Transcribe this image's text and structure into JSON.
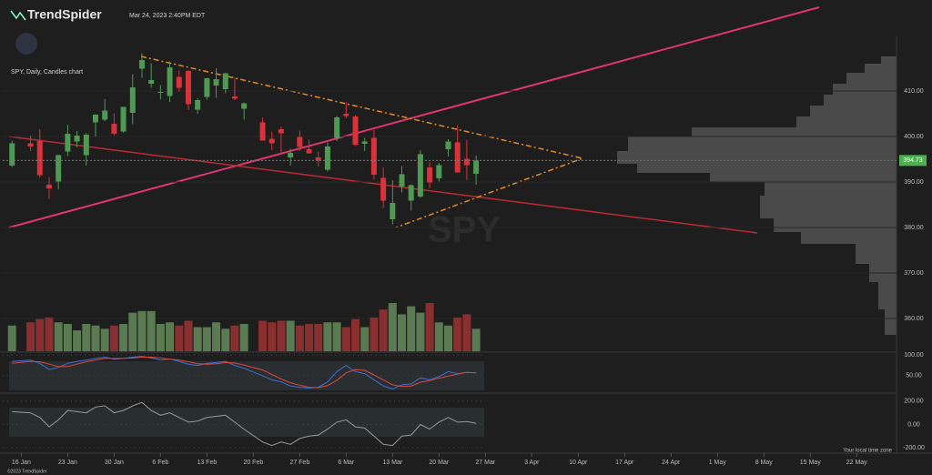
{
  "header": {
    "brand": "TrendSpider",
    "timestamp": "Mar 24, 2023 2:40PM EDT",
    "copyright": "©2023 TrendSpider",
    "timezone_note": "Your local time zone"
  },
  "chart_data": {
    "type": "candlestick",
    "title": "SPY, Daily, Candles chart",
    "watermark": "SPY",
    "x": [
      "2023-01-13",
      "2023-01-17",
      "2023-01-18",
      "2023-01-19",
      "2023-01-20",
      "2023-01-23",
      "2023-01-24",
      "2023-01-25",
      "2023-01-26",
      "2023-01-27",
      "2023-01-30",
      "2023-01-31",
      "2023-02-01",
      "2023-02-02",
      "2023-02-03",
      "2023-02-06",
      "2023-02-07",
      "2023-02-08",
      "2023-02-09",
      "2023-02-10",
      "2023-02-13",
      "2023-02-14",
      "2023-02-15",
      "2023-02-16",
      "2023-02-17",
      "2023-02-21",
      "2023-02-22",
      "2023-02-23",
      "2023-02-24",
      "2023-02-27",
      "2023-02-28",
      "2023-03-01",
      "2023-03-02",
      "2023-03-03",
      "2023-03-06",
      "2023-03-07",
      "2023-03-08",
      "2023-03-09",
      "2023-03-10",
      "2023-03-13",
      "2023-03-14",
      "2023-03-15",
      "2023-03-16",
      "2023-03-17",
      "2023-03-20",
      "2023-03-21",
      "2023-03-22",
      "2023-03-23",
      "2023-03-24"
    ],
    "open": [
      393.6,
      398.5,
      399.0,
      389.4,
      390.1,
      396.7,
      398.9,
      395.9,
      403.1,
      403.7,
      402.8,
      401.1,
      405.2,
      414.9,
      411.6,
      409.8,
      408.9,
      413.1,
      414.4,
      405.9,
      408.7,
      411.2,
      410.4,
      408.8,
      406.1,
      403.1,
      399.5,
      401.6,
      395.4,
      399.9,
      397.2,
      395.4,
      392.7,
      399.7,
      405.0,
      404.4,
      398.4,
      399.7,
      390.9,
      381.8,
      389.0,
      385.9,
      386.8,
      393.2,
      390.8,
      397.2,
      398.7,
      395.1,
      391.8
    ],
    "high": [
      399.1,
      400.2,
      401.6,
      391.1,
      396.0,
      402.6,
      401.2,
      400.7,
      404.9,
      408.2,
      405.1,
      406.5,
      413.7,
      418.3,
      416.1,
      411.3,
      416.5,
      414.5,
      414.6,
      408.4,
      412.9,
      415.0,
      414.0,
      412.9,
      407.5,
      404.2,
      401.1,
      402.2,
      397.3,
      401.3,
      399.3,
      396.7,
      398.7,
      404.5,
      407.5,
      404.7,
      399.7,
      401.5,
      393.2,
      390.4,
      393.5,
      389.5,
      397.0,
      394.4,
      394.2,
      399.4,
      402.5,
      399.3,
      395.8
    ],
    "low": [
      393.3,
      396.8,
      391.0,
      386.3,
      388.4,
      395.7,
      397.6,
      393.6,
      400.0,
      403.4,
      400.3,
      400.8,
      402.7,
      412.9,
      410.7,
      408.1,
      407.6,
      409.9,
      405.8,
      405.0,
      408.1,
      408.5,
      409.5,
      408.0,
      403.7,
      399.1,
      397.0,
      396.3,
      393.6,
      396.8,
      396.2,
      393.4,
      392.3,
      399.0,
      404.0,
      397.9,
      396.8,
      390.5,
      384.3,
      380.7,
      387.7,
      383.7,
      386.5,
      388.6,
      390.1,
      395.6,
      392.0,
      390.4,
      389.4
    ],
    "close": [
      398.5,
      397.8,
      391.5,
      388.6,
      395.9,
      400.6,
      400.2,
      400.4,
      404.8,
      405.7,
      400.6,
      406.5,
      410.8,
      416.8,
      412.4,
      409.8,
      415.2,
      410.7,
      407.1,
      408.0,
      412.8,
      412.6,
      413.9,
      408.3,
      407.3,
      399.1,
      398.5,
      400.7,
      396.4,
      397.7,
      396.3,
      394.7,
      397.8,
      404.2,
      404.5,
      398.2,
      398.9,
      391.6,
      385.9,
      385.4,
      391.7,
      389.3,
      396.1,
      389.9,
      393.7,
      398.9,
      392.1,
      393.7,
      394.73
    ],
    "volume": [
      80,
      90,
      100,
      105,
      90,
      85,
      65,
      85,
      80,
      70,
      80,
      85,
      120,
      125,
      125,
      85,
      90,
      80,
      95,
      75,
      75,
      90,
      70,
      80,
      85,
      95,
      90,
      95,
      95,
      80,
      85,
      85,
      90,
      90,
      75,
      100,
      75,
      105,
      130,
      150,
      115,
      140,
      120,
      150,
      90,
      80,
      105,
      115,
      70
    ],
    "vlim": [
      0,
      170
    ],
    "colors": {
      "up": "#4e9a52",
      "down": "#d8333a",
      "volume_up": "#5a7a52",
      "volume_down": "#8a2f2f"
    },
    "xlim": [
      "2023-01-12",
      "2023-05-26"
    ],
    "xticks": [
      {
        "value": "2023-01-16",
        "label": "16 Jan"
      },
      {
        "value": "2023-01-23",
        "label": "23 Jan"
      },
      {
        "value": "2023-01-30",
        "label": "30 Jan"
      },
      {
        "value": "2023-02-06",
        "label": "6 Feb"
      },
      {
        "value": "2023-02-13",
        "label": "13 Feb"
      },
      {
        "value": "2023-02-20",
        "label": "20 Feb"
      },
      {
        "value": "2023-02-27",
        "label": "27 Feb"
      },
      {
        "value": "2023-03-06",
        "label": "6 Mar"
      },
      {
        "value": "2023-03-13",
        "label": "13 Mar"
      },
      {
        "value": "2023-03-20",
        "label": "20 Mar"
      },
      {
        "value": "2023-03-27",
        "label": "27 Mar"
      },
      {
        "value": "2023-04-03",
        "label": "3 Apr"
      },
      {
        "value": "2023-04-10",
        "label": "10 Apr"
      },
      {
        "value": "2023-04-17",
        "label": "17 Apr"
      },
      {
        "value": "2023-04-24",
        "label": "24 Apr"
      },
      {
        "value": "2023-05-01",
        "label": "1 May"
      },
      {
        "value": "2023-05-08",
        "label": "8 May"
      },
      {
        "value": "2023-05-15",
        "label": "15 May"
      },
      {
        "value": "2023-05-22",
        "label": "22 May"
      }
    ],
    "ylim": [
      355,
      422
    ],
    "yticks": [
      {
        "value": 410,
        "label": "410.00"
      },
      {
        "value": 400,
        "label": "400.00"
      },
      {
        "value": 390,
        "label": "390.00"
      },
      {
        "value": 380,
        "label": "380.00"
      },
      {
        "value": 370,
        "label": "370.00"
      },
      {
        "value": 360,
        "label": "360.00"
      }
    ],
    "last_price": 394.73,
    "last_price_color": "#4caf50",
    "panels": [
      {
        "ylim": [
          10,
          105
        ],
        "yticks": [
          {
            "value": 100,
            "label": "100.00"
          },
          {
            "value": 50,
            "label": "50.00"
          }
        ],
        "series": [
          {
            "color": "#3f6fd8",
            "values": [
              85,
              88,
              80,
              65,
              70,
              80,
              85,
              88,
              92,
              95,
              90,
              92,
              95,
              97,
              93,
              88,
              90,
              85,
              78,
              75,
              80,
              82,
              85,
              75,
              68,
              50,
              40,
              35,
              25,
              22,
              20,
              22,
              35,
              60,
              75,
              60,
              55,
              40,
              25,
              18,
              28,
              30,
              45,
              40,
              48,
              60,
              55,
              58,
              57
            ]
          },
          {
            "color": "#d84a3f",
            "values": [
              80,
              85,
              84,
              78,
              72,
              72,
              78,
              84,
              88,
              92,
              92,
              92,
              93,
              95,
              95,
              93,
              90,
              88,
              84,
              79,
              78,
              79,
              82,
              81,
              76,
              64,
              53,
              42,
              33,
              27,
              22,
              21,
              26,
              39,
              57,
              65,
              63,
              52,
              40,
              28,
              24,
              25,
              34,
              38,
              44,
              49,
              54,
              58,
              57
            ]
          }
        ]
      },
      {
        "ylim": [
          -230,
          238
        ],
        "yticks": [
          {
            "value": 200,
            "label": "200.00"
          },
          {
            "value": 0,
            "label": "0.00"
          },
          {
            "value": -200,
            "label": "-200.00"
          }
        ],
        "series": [
          {
            "color": "#9a9a9a",
            "values": [
              110,
              100,
              60,
              -20,
              40,
              120,
              110,
              100,
              150,
              160,
              100,
              120,
              160,
              190,
              120,
              80,
              100,
              60,
              20,
              30,
              60,
              70,
              80,
              20,
              -40,
              -150,
              -180,
              -150,
              -170,
              -120,
              -100,
              -90,
              -40,
              20,
              40,
              -20,
              -30,
              -100,
              -170,
              -180,
              -100,
              -90,
              0,
              -40,
              20,
              60,
              20,
              25,
              10
            ]
          }
        ]
      }
    ]
  }
}
